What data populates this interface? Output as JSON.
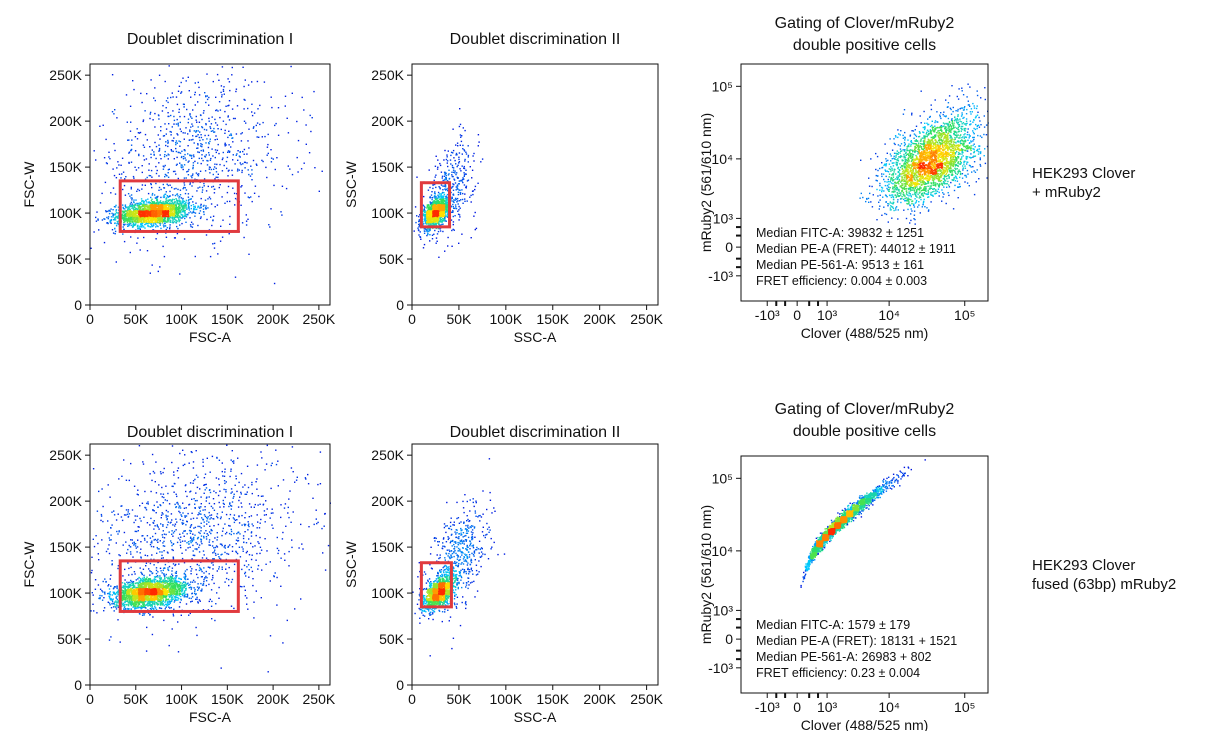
{
  "colors": {
    "gate": "#e03a3e",
    "density_low": "#0000dd",
    "density_mid_low": "#00c8ff",
    "density_mid": "#32e05a",
    "density_mid_high": "#ffe600",
    "density_high": "#ff2a00",
    "axis": "#111111"
  },
  "samples": [
    {
      "label": "HEK293 Clover\n+ mRuby2"
    },
    {
      "label": "HEK293 Clover\nfused (63bp) mRuby2"
    }
  ],
  "chart_data": [
    {
      "type": "scatter",
      "title": "Doublet discrimination I",
      "xlabel": "FSC-A",
      "ylabel": "FSC-W",
      "xlim": [
        0,
        262144
      ],
      "ylim": [
        0,
        262144
      ],
      "xticks": [
        0,
        50000,
        100000,
        150000,
        200000,
        250000
      ],
      "xticklabels": [
        "0",
        "50K",
        "100K",
        "150K",
        "200K",
        "250K"
      ],
      "yticks": [
        0,
        50000,
        100000,
        150000,
        200000,
        250000
      ],
      "yticklabels": [
        "0",
        "50K",
        "100K",
        "150K",
        "200K",
        "250K"
      ],
      "gate": {
        "x": [
          33000,
          162000
        ],
        "y": [
          80000,
          135000
        ]
      },
      "populations": [
        {
          "mx": 68000,
          "my": 101000,
          "sx": 20000,
          "sy": 7000,
          "n": 2000,
          "corr": 0.3
        },
        {
          "mx": 110000,
          "my": 160000,
          "sx": 55000,
          "sy": 45000,
          "n": 950,
          "corr": 0.2
        }
      ],
      "annotations": []
    },
    {
      "type": "scatter",
      "title": "Doublet discrimination II",
      "xlabel": "SSC-A",
      "ylabel": "SSC-W",
      "xlim": [
        0,
        262144
      ],
      "ylim": [
        0,
        262144
      ],
      "xticks": [
        0,
        50000,
        100000,
        150000,
        200000,
        250000
      ],
      "xticklabels": [
        "0",
        "50K",
        "100K",
        "150K",
        "200K",
        "250K"
      ],
      "yticks": [
        0,
        50000,
        100000,
        150000,
        200000,
        250000
      ],
      "yticklabels": [
        "0",
        "50K",
        "100K",
        "150K",
        "200K",
        "250K"
      ],
      "gate": {
        "x": [
          10000,
          40000
        ],
        "y": [
          85000,
          133000
        ]
      },
      "populations": [
        {
          "mx": 25000,
          "my": 101000,
          "sx": 7000,
          "sy": 8000,
          "n": 1300,
          "corr": 0.5
        },
        {
          "mx": 40000,
          "my": 128000,
          "sx": 14000,
          "sy": 26000,
          "n": 380,
          "corr": 0.4
        }
      ],
      "annotations": []
    },
    {
      "type": "scatter",
      "title": "Gating of Clover/mRuby2\ndouble positive cells",
      "xlabel": "Clover (488/525 nm)",
      "ylabel": "mRuby2 (561/610 nm)",
      "xscale": "biexponential",
      "yscale": "biexponential",
      "xlim": [
        -3000,
        200000
      ],
      "ylim": [
        -3000,
        200000
      ],
      "xticks": [
        -1000,
        0,
        1000,
        10000,
        100000
      ],
      "xticklabels": [
        "-10³",
        "0",
        "10³",
        "10⁴",
        "10⁵"
      ],
      "yticks": [
        -1000,
        0,
        1000,
        10000,
        100000
      ],
      "yticklabels": [
        "-10³",
        "0",
        "10³",
        "10⁴",
        "10⁵"
      ],
      "gate": null,
      "populations": [
        {
          "mlx": 4.55,
          "mly": 3.98,
          "slx": 0.3,
          "sly": 0.33,
          "n": 2800,
          "corr": 0.55
        }
      ],
      "annotations": [
        "Median FITC-A: 39832 ± 1251",
        "Median PE-A (FRET): 44012 ± 1911",
        "Median PE-561-A: 9513 ± 161",
        "FRET efficiency: 0.004 ± 0.003"
      ]
    },
    {
      "type": "scatter",
      "title": "Doublet discrimination I",
      "xlabel": "FSC-A",
      "ylabel": "FSC-W",
      "xlim": [
        0,
        262144
      ],
      "ylim": [
        0,
        262144
      ],
      "xticks": [
        0,
        50000,
        100000,
        150000,
        200000,
        250000
      ],
      "xticklabels": [
        "0",
        "50K",
        "100K",
        "150K",
        "200K",
        "250K"
      ],
      "yticks": [
        0,
        50000,
        100000,
        150000,
        200000,
        250000
      ],
      "yticklabels": [
        "0",
        "50K",
        "100K",
        "150K",
        "200K",
        "250K"
      ],
      "gate": {
        "x": [
          33000,
          162000
        ],
        "y": [
          80000,
          135000
        ]
      },
      "populations": [
        {
          "mx": 65000,
          "my": 101000,
          "sx": 20000,
          "sy": 8000,
          "n": 2200,
          "corr": 0.3
        },
        {
          "mx": 115000,
          "my": 165000,
          "sx": 60000,
          "sy": 45000,
          "n": 1200,
          "corr": 0.2
        }
      ],
      "annotations": []
    },
    {
      "type": "scatter",
      "title": "Doublet discrimination II",
      "xlabel": "SSC-A",
      "ylabel": "SSC-W",
      "xlim": [
        0,
        262144
      ],
      "ylim": [
        0,
        262144
      ],
      "xticks": [
        0,
        50000,
        100000,
        150000,
        200000,
        250000
      ],
      "xticklabels": [
        "0",
        "50K",
        "100K",
        "150K",
        "200K",
        "250K"
      ],
      "yticks": [
        0,
        50000,
        100000,
        150000,
        200000,
        250000
      ],
      "yticklabels": [
        "0",
        "50K",
        "100K",
        "150K",
        "200K",
        "250K"
      ],
      "gate": {
        "x": [
          10000,
          42000
        ],
        "y": [
          85000,
          133000
        ]
      },
      "populations": [
        {
          "mx": 28000,
          "my": 101000,
          "sx": 8000,
          "sy": 9000,
          "n": 1300,
          "corr": 0.5
        },
        {
          "mx": 48000,
          "my": 135000,
          "sx": 16000,
          "sy": 30000,
          "n": 550,
          "corr": 0.5
        }
      ],
      "annotations": []
    },
    {
      "type": "scatter",
      "title": "Gating of Clover/mRuby2\ndouble positive cells",
      "xlabel": "Clover (488/525 nm)",
      "ylabel": "mRuby2 (561/610 nm)",
      "xscale": "biexponential",
      "yscale": "biexponential",
      "xlim": [
        -3000,
        200000
      ],
      "ylim": [
        -3000,
        200000
      ],
      "xticks": [
        -1000,
        0,
        1000,
        10000,
        100000
      ],
      "xticklabels": [
        "-10³",
        "0",
        "10³",
        "10⁴",
        "10⁵"
      ],
      "yticks": [
        -1000,
        0,
        1000,
        10000,
        100000
      ],
      "yticklabels": [
        "-10³",
        "0",
        "10³",
        "10⁴",
        "10⁵"
      ],
      "gate": null,
      "populations": [
        {
          "mlx": 3.2,
          "mly": 4.38,
          "slx": 0.38,
          "sly": 0.27,
          "n": 2600,
          "corr": 0.985
        }
      ],
      "annotations": [
        "Median FITC-A: 1579 ± 179",
        "Median PE-A (FRET): 18131 + 1521",
        "Median PE-561-A: 26983 + 802",
        "FRET efficiency: 0.23 ± 0.004"
      ]
    }
  ]
}
